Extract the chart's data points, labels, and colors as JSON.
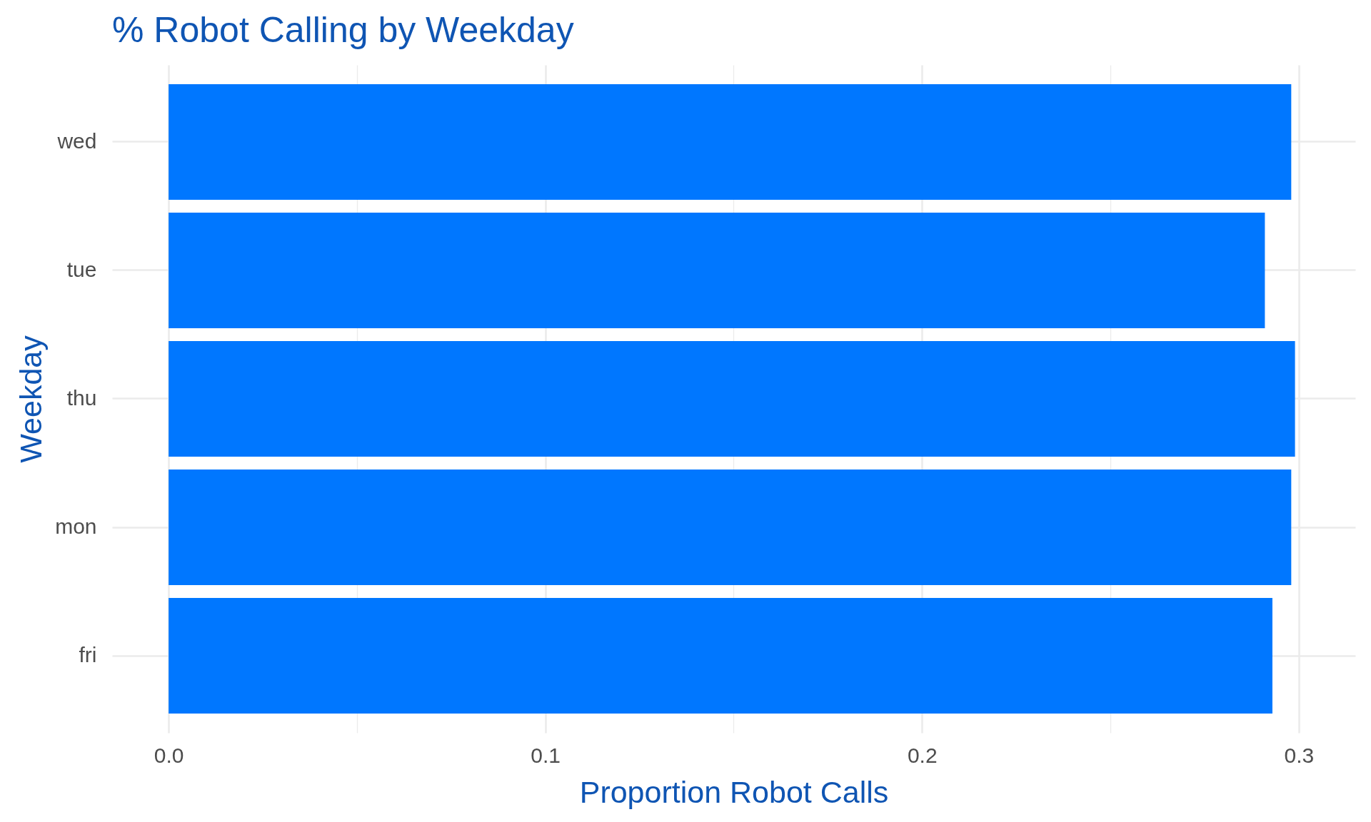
{
  "chart_data": {
    "type": "bar",
    "orientation": "horizontal",
    "title": "% Robot Calling by Weekday",
    "xlabel": "Proportion Robot Calls",
    "ylabel": "Weekday",
    "categories": [
      "wed",
      "tue",
      "thu",
      "mon",
      "fri"
    ],
    "values": [
      0.298,
      0.291,
      0.299,
      0.298,
      0.293
    ],
    "color": "#0077ff",
    "xlim": [
      -0.015,
      0.315
    ],
    "xticks": [
      {
        "value": 0,
        "label": "0.0"
      },
      {
        "value": 0.05,
        "label": null
      },
      {
        "value": 0.1,
        "label": "0.1"
      },
      {
        "value": 0.15,
        "label": null
      },
      {
        "value": 0.2,
        "label": "0.2"
      },
      {
        "value": 0.25,
        "label": null
      },
      {
        "value": 0.3,
        "label": "0.3"
      }
    ],
    "grid": true
  }
}
